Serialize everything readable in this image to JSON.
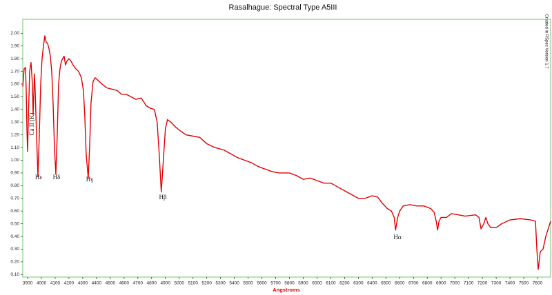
{
  "chart_data": {
    "type": "line",
    "title": "Rasalhague: Spectral Type A5III",
    "xlabel": "Angstroms",
    "note": "Created in RSpec Version 1.7",
    "annotations": [
      "Ca II (K)",
      "Hε",
      "Hδ",
      "Hγ",
      "Hβ",
      "Hα"
    ],
    "xlim": [
      3865,
      7695
    ],
    "ylim": [
      0.08,
      2.11
    ],
    "xticks": [
      3900,
      4000,
      4100,
      4200,
      4300,
      4400,
      4500,
      4600,
      4700,
      4800,
      4900,
      5000,
      5100,
      5200,
      5300,
      5400,
      5500,
      5600,
      5700,
      5800,
      5900,
      6000,
      6100,
      6200,
      6300,
      6400,
      6500,
      6600,
      6700,
      6800,
      6900,
      7000,
      7100,
      7200,
      7300,
      7400,
      7500,
      7600
    ],
    "yticks": [
      {
        "value": 0.1,
        "label": "0.10"
      },
      {
        "value": 0.2,
        "label": "0.20"
      },
      {
        "value": 0.3,
        "label": "0.30"
      },
      {
        "value": 0.4,
        "label": "0.40"
      },
      {
        "value": 0.5,
        "label": "0.50"
      },
      {
        "value": 0.6,
        "label": "0.60"
      },
      {
        "value": 0.7,
        "label": "0.70"
      },
      {
        "value": 0.8,
        "label": "0.80"
      },
      {
        "value": 0.9,
        "label": "0.90"
      },
      {
        "value": 1.0,
        "label": "1.00"
      },
      {
        "value": 1.1,
        "label": "1.10"
      },
      {
        "value": 1.2,
        "label": "1.20"
      },
      {
        "value": 1.3,
        "label": "1.30"
      },
      {
        "value": 1.4,
        "label": "1.40"
      },
      {
        "value": 1.5,
        "label": "1.50"
      },
      {
        "value": 1.6,
        "label": "1.60"
      },
      {
        "value": 1.7,
        "label": "1.70"
      },
      {
        "value": 1.8,
        "label": "1.80"
      },
      {
        "value": 1.9,
        "label": "1.90"
      },
      {
        "value": 2.0,
        "label": "2.00"
      }
    ],
    "color": "#e00000",
    "x": [
      3865,
      3875,
      3885,
      3890,
      3895,
      3900,
      3905,
      3915,
      3925,
      3935,
      3940,
      3950,
      3955,
      3965,
      3975,
      3985,
      3995,
      4005,
      4015,
      4025,
      4035,
      4045,
      4055,
      4065,
      4075,
      4085,
      4095,
      4105,
      4115,
      4125,
      4135,
      4145,
      4155,
      4165,
      4175,
      4185,
      4200,
      4215,
      4230,
      4250,
      4270,
      4290,
      4305,
      4315,
      4325,
      4340,
      4350,
      4360,
      4375,
      4390,
      4410,
      4440,
      4475,
      4510,
      4550,
      4580,
      4615,
      4650,
      4685,
      4725,
      4760,
      4790,
      4820,
      4840,
      4855,
      4870,
      4885,
      4900,
      4915,
      4940,
      4975,
      5010,
      5050,
      5100,
      5150,
      5200,
      5260,
      5325,
      5375,
      5425,
      5475,
      5525,
      5575,
      5625,
      5675,
      5725,
      5800,
      5850,
      5900,
      5950,
      6000,
      6050,
      6100,
      6150,
      6200,
      6250,
      6300,
      6350,
      6400,
      6440,
      6475,
      6510,
      6540,
      6560,
      6570,
      6585,
      6600,
      6625,
      6675,
      6725,
      6775,
      6825,
      6850,
      6865,
      6875,
      6885,
      6900,
      6940,
      6975,
      7025,
      7075,
      7150,
      7175,
      7190,
      7210,
      7225,
      7240,
      7260,
      7300,
      7340,
      7400,
      7475,
      7550,
      7585,
      7595,
      7605,
      7620,
      7640,
      7660,
      7695
    ],
    "values": [
      1.58,
      1.72,
      1.73,
      1.55,
      1.25,
      1.07,
      1.3,
      1.7,
      1.77,
      1.6,
      1.36,
      1.68,
      1.55,
      1.2,
      0.87,
      1.2,
      1.6,
      1.8,
      1.9,
      1.98,
      1.93,
      1.92,
      1.88,
      1.82,
      1.7,
      1.45,
      1.1,
      0.89,
      1.2,
      1.6,
      1.72,
      1.78,
      1.8,
      1.82,
      1.75,
      1.78,
      1.8,
      1.78,
      1.75,
      1.72,
      1.7,
      1.65,
      1.55,
      1.35,
      1.05,
      0.86,
      1.1,
      1.45,
      1.62,
      1.65,
      1.63,
      1.6,
      1.57,
      1.56,
      1.55,
      1.52,
      1.52,
      1.5,
      1.48,
      1.49,
      1.43,
      1.41,
      1.4,
      1.3,
      1.05,
      0.75,
      1.0,
      1.25,
      1.32,
      1.3,
      1.26,
      1.23,
      1.2,
      1.19,
      1.18,
      1.13,
      1.1,
      1.08,
      1.05,
      1.02,
      1.0,
      0.98,
      0.95,
      0.93,
      0.91,
      0.9,
      0.9,
      0.88,
      0.85,
      0.86,
      0.84,
      0.82,
      0.82,
      0.79,
      0.76,
      0.73,
      0.7,
      0.7,
      0.72,
      0.71,
      0.66,
      0.62,
      0.6,
      0.55,
      0.45,
      0.55,
      0.6,
      0.64,
      0.65,
      0.64,
      0.64,
      0.62,
      0.59,
      0.52,
      0.45,
      0.52,
      0.55,
      0.55,
      0.58,
      0.57,
      0.56,
      0.57,
      0.55,
      0.46,
      0.5,
      0.55,
      0.5,
      0.47,
      0.47,
      0.5,
      0.53,
      0.54,
      0.53,
      0.52,
      0.3,
      0.14,
      0.28,
      0.3,
      0.4,
      0.52
    ]
  }
}
